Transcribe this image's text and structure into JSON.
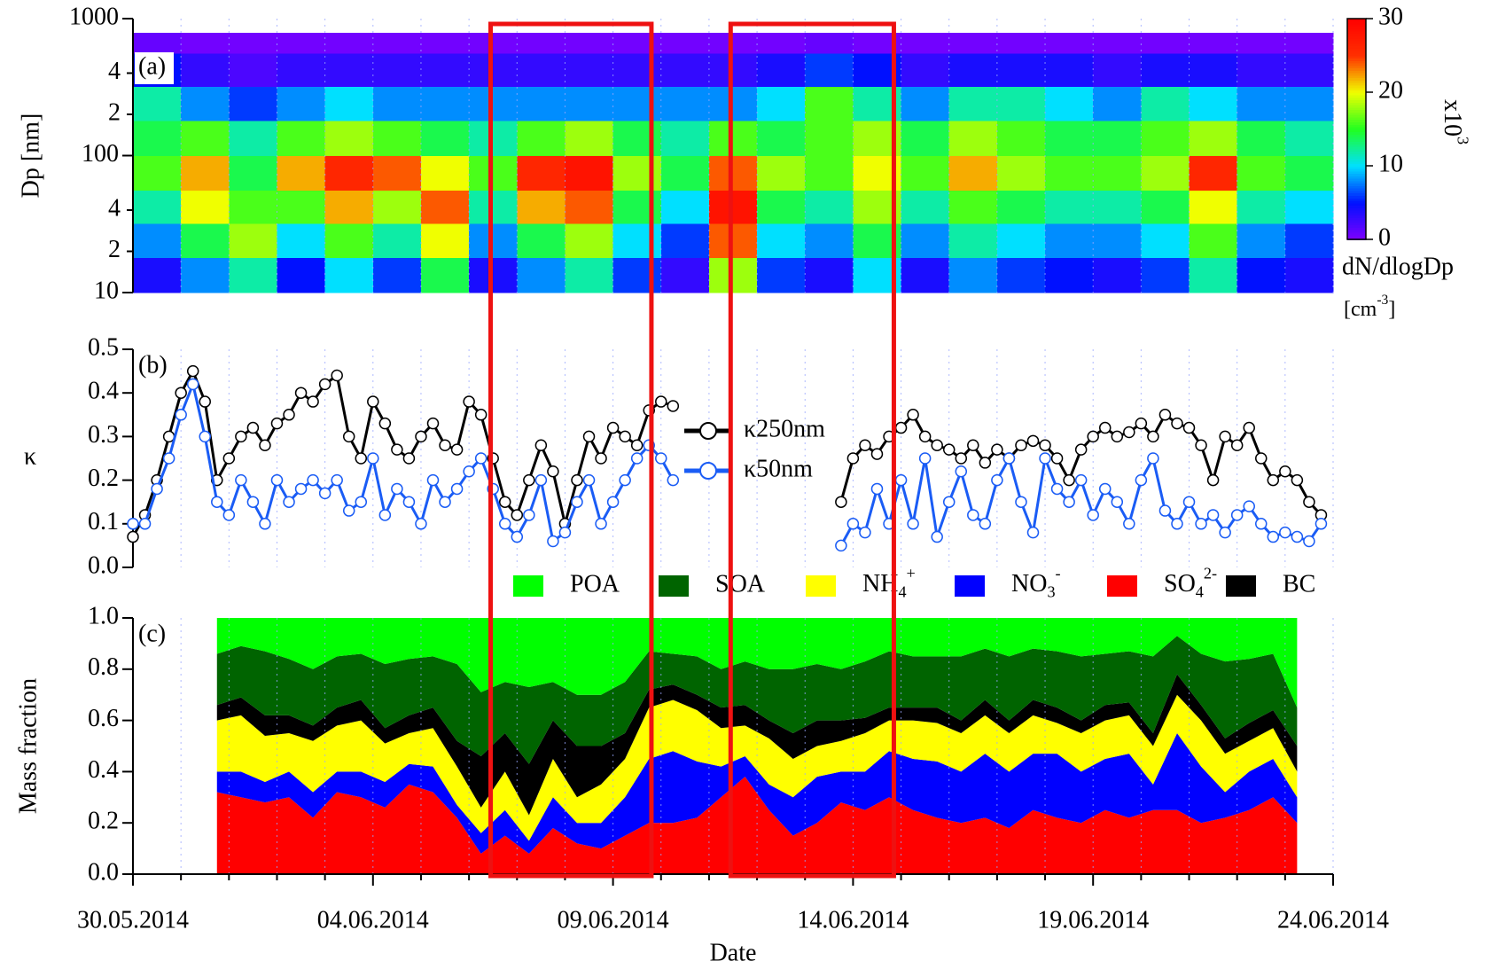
{
  "chart_data": [
    {
      "type": "heatmap",
      "panel_label": "(a)",
      "ylabel": "Dp [nm]",
      "log_y": true,
      "ylim": [
        10,
        1000
      ],
      "yticks": [
        10,
        {
          "value": 20,
          "label": "2"
        },
        {
          "value": 40,
          "label": "4"
        },
        100,
        {
          "value": 200,
          "label": "2"
        },
        {
          "value": 400,
          "label": "4"
        },
        1000
      ],
      "xbins": [
        0,
        1,
        2,
        3,
        4,
        5,
        6,
        7,
        8,
        9,
        10,
        11,
        12,
        13,
        14,
        15,
        16,
        17,
        18,
        19,
        20,
        21,
        22,
        23,
        24,
        25
      ],
      "ybins": [
        10,
        18,
        32,
        56,
        100,
        180,
        320,
        560,
        790
      ],
      "z": [
        [
          4,
          8,
          12,
          5,
          10,
          6,
          14,
          4,
          8,
          12,
          6,
          3,
          18,
          6,
          4,
          10,
          4,
          8,
          6,
          5,
          4,
          6,
          12,
          5,
          4
        ],
        [
          8,
          14,
          18,
          10,
          16,
          12,
          20,
          8,
          14,
          18,
          10,
          6,
          24,
          10,
          8,
          14,
          8,
          12,
          10,
          8,
          8,
          10,
          16,
          8,
          6
        ],
        [
          12,
          20,
          16,
          16,
          22,
          18,
          24,
          12,
          22,
          24,
          14,
          10,
          28,
          14,
          12,
          18,
          12,
          16,
          14,
          12,
          12,
          14,
          20,
          12,
          10
        ],
        [
          16,
          22,
          14,
          22,
          26,
          24,
          20,
          16,
          26,
          28,
          18,
          14,
          24,
          18,
          16,
          20,
          16,
          22,
          18,
          16,
          16,
          18,
          26,
          16,
          14
        ],
        [
          14,
          16,
          12,
          16,
          18,
          16,
          14,
          12,
          16,
          18,
          14,
          12,
          16,
          14,
          16,
          18,
          14,
          18,
          16,
          14,
          14,
          16,
          18,
          14,
          12
        ],
        [
          12,
          8,
          6,
          8,
          10,
          8,
          8,
          8,
          8,
          8,
          8,
          8,
          8,
          10,
          16,
          12,
          8,
          12,
          12,
          10,
          8,
          12,
          10,
          8,
          8
        ],
        [
          5,
          3,
          2,
          3,
          3,
          3,
          3,
          3,
          3,
          3,
          3,
          3,
          3,
          4,
          6,
          5,
          3,
          4,
          4,
          4,
          3,
          4,
          4,
          3,
          3
        ],
        [
          1,
          0.5,
          0.5,
          0.5,
          0.5,
          0.5,
          0.5,
          0.5,
          0.5,
          0.5,
          0.5,
          0.5,
          0.5,
          0.5,
          1,
          0.5,
          0.5,
          0.5,
          0.5,
          0.5,
          0.5,
          0.5,
          0.5,
          0.5,
          0.5
        ]
      ],
      "clim": [
        0,
        30
      ],
      "cticks": [
        0,
        10,
        20,
        30
      ],
      "colorbar_label": "dN/dlogDp",
      "colorbar_units": {
        "base": "[cm",
        "sup": "-3",
        "after": "]"
      },
      "colorbar_scale": {
        "base": "x10",
        "sup": "3"
      }
    },
    {
      "type": "line",
      "panel_label": "(b)",
      "ylabel": "κ",
      "markers": true,
      "ylim": [
        0,
        0.5
      ],
      "yticks": [
        {
          "value": 0,
          "label": "0.0"
        },
        0.1,
        0.2,
        0.3,
        0.4,
        0.5
      ],
      "x": [
        0,
        0.25,
        0.5,
        0.75,
        1,
        1.25,
        1.5,
        1.75,
        2,
        2.25,
        2.5,
        2.75,
        3,
        3.25,
        3.5,
        3.75,
        4,
        4.25,
        4.5,
        4.75,
        5,
        5.25,
        5.5,
        5.75,
        6,
        6.25,
        6.5,
        6.75,
        7,
        7.25,
        7.5,
        7.75,
        8,
        8.25,
        8.5,
        8.75,
        9,
        9.25,
        9.5,
        9.75,
        10,
        10.25,
        10.5,
        10.75,
        11,
        11.25,
        11.5,
        11.75,
        12,
        12.25,
        12.5,
        12.75,
        13,
        13.25,
        13.5,
        13.75,
        14,
        14.25,
        14.5,
        14.75,
        15,
        15.25,
        15.5,
        15.75,
        16,
        16.25,
        16.5,
        16.75,
        17,
        17.25,
        17.5,
        17.75,
        18,
        18.25,
        18.5,
        18.75,
        19,
        19.25,
        19.5,
        19.75,
        20,
        20.25,
        20.5,
        20.75,
        21,
        21.25,
        21.5,
        21.75,
        22,
        22.25,
        22.5,
        22.75,
        23,
        23.25,
        23.5,
        23.75,
        24,
        24.25,
        24.5,
        24.75
      ],
      "series": [
        {
          "name": "κ250nm",
          "color": "#000000",
          "values": [
            0.07,
            0.12,
            0.2,
            0.3,
            0.4,
            0.45,
            0.38,
            0.2,
            0.25,
            0.3,
            0.32,
            0.28,
            0.33,
            0.35,
            0.4,
            0.38,
            0.42,
            0.44,
            0.3,
            0.25,
            0.38,
            0.33,
            0.27,
            0.25,
            0.3,
            0.33,
            0.28,
            0.27,
            0.38,
            0.35,
            0.25,
            0.15,
            0.12,
            0.2,
            0.28,
            0.22,
            0.1,
            0.2,
            0.3,
            0.25,
            0.32,
            0.3,
            0.28,
            0.36,
            0.38,
            0.37,
            null,
            null,
            null,
            null,
            null,
            null,
            null,
            null,
            null,
            null,
            null,
            null,
            null,
            0.15,
            0.25,
            0.28,
            0.26,
            0.3,
            0.32,
            0.35,
            0.3,
            0.28,
            0.27,
            0.25,
            0.28,
            0.24,
            0.27,
            0.25,
            0.28,
            0.29,
            0.28,
            0.25,
            0.2,
            0.27,
            0.3,
            0.32,
            0.3,
            0.31,
            0.33,
            0.3,
            0.35,
            0.33,
            0.32,
            0.28,
            0.2,
            0.3,
            0.28,
            0.32,
            0.25,
            0.2,
            0.22,
            0.2,
            0.15,
            0.12
          ]
        },
        {
          "name": "κ50nm",
          "color": "#1a5cf5",
          "values": [
            0.1,
            0.1,
            0.18,
            0.25,
            0.35,
            0.42,
            0.3,
            0.15,
            0.12,
            0.2,
            0.15,
            0.1,
            0.2,
            0.15,
            0.18,
            0.2,
            0.17,
            0.2,
            0.13,
            0.15,
            0.25,
            0.12,
            0.18,
            0.15,
            0.1,
            0.2,
            0.15,
            0.18,
            0.22,
            0.25,
            0.18,
            0.1,
            0.07,
            0.12,
            0.2,
            0.06,
            0.08,
            0.15,
            0.2,
            0.1,
            0.15,
            0.2,
            0.25,
            0.28,
            0.25,
            0.2,
            null,
            null,
            null,
            null,
            null,
            null,
            null,
            null,
            null,
            null,
            null,
            null,
            null,
            0.05,
            0.1,
            0.08,
            0.18,
            0.1,
            0.2,
            0.1,
            0.25,
            0.07,
            0.15,
            0.22,
            0.12,
            0.1,
            0.2,
            0.25,
            0.15,
            0.08,
            0.25,
            0.18,
            0.15,
            0.2,
            0.12,
            0.18,
            0.15,
            0.1,
            0.2,
            0.25,
            0.13,
            0.1,
            0.15,
            0.1,
            0.12,
            0.08,
            0.12,
            0.14,
            0.1,
            0.07,
            0.08,
            0.07,
            0.06,
            0.1
          ]
        }
      ]
    },
    {
      "type": "stacked_area",
      "panel_label": "(c)",
      "ylabel": "Mass fraction",
      "xlabel": "Date",
      "xlim": [
        0,
        25
      ],
      "xticks": [
        {
          "value": 0,
          "label": "30.05.2014"
        },
        {
          "value": 5,
          "label": "04.06.2014"
        },
        {
          "value": 10,
          "label": "09.06.2014"
        },
        {
          "value": 15,
          "label": "14.06.2014"
        },
        {
          "value": 20,
          "label": "19.06.2014"
        },
        {
          "value": 25,
          "label": "24.06.2014"
        }
      ],
      "xminor": [
        1,
        2,
        3,
        4,
        6,
        7,
        8,
        9,
        11,
        12,
        13,
        14,
        16,
        17,
        18,
        19,
        21,
        22,
        23,
        24
      ],
      "ylim": [
        0,
        1
      ],
      "yticks": [
        {
          "value": 0,
          "label": "0.0"
        },
        0.2,
        0.4,
        0.6,
        0.8,
        {
          "value": 1,
          "label": "1.0"
        }
      ],
      "x": [
        1.75,
        2.25,
        2.75,
        3.25,
        3.75,
        4.25,
        4.75,
        5.25,
        5.75,
        6.25,
        6.75,
        7.25,
        7.75,
        8.25,
        8.75,
        9.25,
        9.75,
        10.25,
        10.75,
        11.25,
        11.75,
        12.25,
        12.75,
        13.25,
        13.75,
        14.25,
        14.75,
        15.25,
        15.75,
        16.25,
        16.75,
        17.25,
        17.75,
        18.25,
        18.75,
        19.25,
        19.75,
        20.25,
        20.75,
        21.25,
        21.75,
        22.25,
        22.75,
        23.25,
        23.75,
        24.25
      ],
      "series": [
        {
          "name": {
            "base": "SO",
            "sub": "4",
            "sup": "2-"
          },
          "color": "#ff0000",
          "values": [
            0.32,
            0.3,
            0.28,
            0.3,
            0.22,
            0.32,
            0.3,
            0.26,
            0.35,
            0.32,
            0.22,
            0.08,
            0.15,
            0.08,
            0.18,
            0.12,
            0.1,
            0.15,
            0.2,
            0.2,
            0.22,
            0.3,
            0.38,
            0.25,
            0.15,
            0.2,
            0.28,
            0.25,
            0.3,
            0.25,
            0.22,
            0.2,
            0.22,
            0.18,
            0.25,
            0.22,
            0.2,
            0.25,
            0.22,
            0.25,
            0.25,
            0.2,
            0.22,
            0.25,
            0.3,
            0.2
          ]
        },
        {
          "name": {
            "base": "NO",
            "sub": "3",
            "sup": "-"
          },
          "color": "#0000ff",
          "values": [
            0.08,
            0.1,
            0.08,
            0.1,
            0.1,
            0.08,
            0.1,
            0.1,
            0.08,
            0.1,
            0.05,
            0.08,
            0.1,
            0.05,
            0.12,
            0.08,
            0.1,
            0.15,
            0.25,
            0.28,
            0.22,
            0.12,
            0.08,
            0.1,
            0.15,
            0.18,
            0.12,
            0.15,
            0.18,
            0.2,
            0.22,
            0.2,
            0.25,
            0.22,
            0.22,
            0.25,
            0.2,
            0.2,
            0.25,
            0.1,
            0.3,
            0.22,
            0.1,
            0.15,
            0.15,
            0.1
          ]
        },
        {
          "name": {
            "base": "NH",
            "sub": "4",
            "sup": "+"
          },
          "color": "#ffff00",
          "values": [
            0.2,
            0.22,
            0.18,
            0.15,
            0.2,
            0.18,
            0.2,
            0.15,
            0.12,
            0.15,
            0.15,
            0.1,
            0.15,
            0.1,
            0.15,
            0.1,
            0.15,
            0.15,
            0.2,
            0.2,
            0.2,
            0.15,
            0.12,
            0.18,
            0.15,
            0.12,
            0.12,
            0.15,
            0.12,
            0.15,
            0.15,
            0.15,
            0.15,
            0.15,
            0.15,
            0.12,
            0.15,
            0.15,
            0.15,
            0.15,
            0.15,
            0.18,
            0.15,
            0.12,
            0.12,
            0.1
          ]
        },
        {
          "name": "BC",
          "color": "#000000",
          "values": [
            0.06,
            0.07,
            0.08,
            0.07,
            0.06,
            0.07,
            0.08,
            0.06,
            0.07,
            0.08,
            0.1,
            0.2,
            0.15,
            0.2,
            0.15,
            0.2,
            0.15,
            0.1,
            0.07,
            0.06,
            0.06,
            0.08,
            0.08,
            0.07,
            0.1,
            0.1,
            0.08,
            0.06,
            0.05,
            0.05,
            0.06,
            0.05,
            0.06,
            0.05,
            0.06,
            0.06,
            0.05,
            0.06,
            0.05,
            0.05,
            0.08,
            0.06,
            0.06,
            0.07,
            0.07,
            0.1
          ]
        },
        {
          "name": "SOA",
          "color": "#006400",
          "values": [
            0.2,
            0.2,
            0.25,
            0.22,
            0.22,
            0.2,
            0.18,
            0.25,
            0.22,
            0.2,
            0.3,
            0.25,
            0.2,
            0.3,
            0.15,
            0.2,
            0.2,
            0.2,
            0.15,
            0.12,
            0.15,
            0.15,
            0.17,
            0.2,
            0.25,
            0.22,
            0.2,
            0.22,
            0.22,
            0.2,
            0.2,
            0.25,
            0.2,
            0.25,
            0.2,
            0.22,
            0.25,
            0.2,
            0.2,
            0.3,
            0.15,
            0.2,
            0.3,
            0.25,
            0.22,
            0.15
          ]
        },
        {
          "name": "POA",
          "color": "#00ff00",
          "values": [
            0.14,
            0.11,
            0.13,
            0.16,
            0.2,
            0.15,
            0.14,
            0.18,
            0.16,
            0.15,
            0.18,
            0.29,
            0.25,
            0.27,
            0.25,
            0.3,
            0.3,
            0.25,
            0.13,
            0.14,
            0.15,
            0.2,
            0.17,
            0.2,
            0.2,
            0.18,
            0.2,
            0.17,
            0.13,
            0.15,
            0.15,
            0.15,
            0.12,
            0.15,
            0.12,
            0.13,
            0.15,
            0.14,
            0.13,
            0.15,
            0.07,
            0.14,
            0.17,
            0.16,
            0.14,
            0.35
          ]
        }
      ],
      "highlights": [
        [
          7.45,
          10.8
        ],
        [
          12.45,
          15.85
        ]
      ]
    }
  ]
}
